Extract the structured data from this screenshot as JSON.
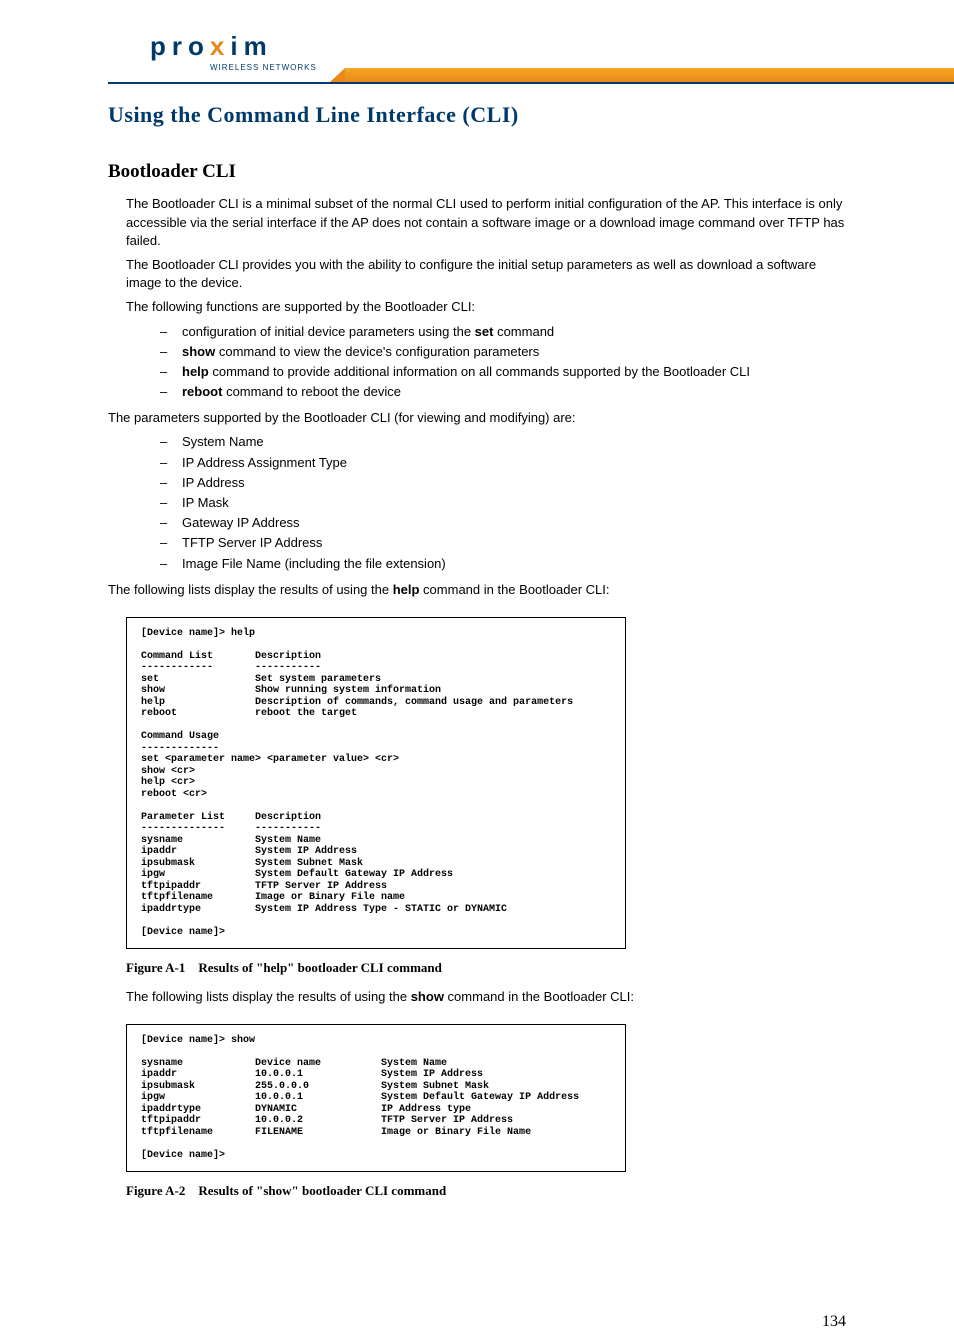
{
  "brand": {
    "name_part1": "pro",
    "name_x": "x",
    "name_part2": "im",
    "sub": "WIRELESS NETWORKS",
    "color_blue": "#003a6a",
    "color_orange": "#e88a1a"
  },
  "page_title": "Using the Command Line Interface (CLI)",
  "section_title": "Bootloader CLI",
  "intro_p1": "The Bootloader CLI is a minimal subset of the normal CLI used to perform initial configuration of the AP. This interface is only accessible via the serial interface if the AP does not contain a software image or a download image command over TFTP has failed.",
  "intro_p2": "The Bootloader CLI provides you with the ability to configure the initial setup parameters as well as download a software image to the device.",
  "intro_p3": "The following functions are supported by the Bootloader CLI:",
  "functions_list": [
    {
      "pre": "configuration of initial device parameters using the ",
      "bold": "set",
      "post": " command"
    },
    {
      "bold": "show",
      "post": " command to view the device's configuration parameters"
    },
    {
      "bold": "help",
      "post": " command to provide additional information on all commands supported by the Bootloader CLI"
    },
    {
      "bold": "reboot",
      "post": " command to reboot the device"
    }
  ],
  "params_intro": "The parameters supported by the Bootloader CLI (for viewing and modifying) are:",
  "params_list": [
    "System Name",
    "IP Address Assignment Type",
    "IP Address",
    "IP Mask",
    "Gateway IP Address",
    "TFTP Server IP Address",
    "Image File Name (including the file extension)"
  ],
  "help_intro_pre": "The following lists display the results of using the ",
  "help_intro_bold": "help",
  "help_intro_post": " command in the Bootloader CLI:",
  "terminal_help": "[Device name]> help\n\nCommand List       Description\n------------       -----------\nset                Set system parameters\nshow               Show running system information\nhelp               Description of commands, command usage and parameters\nreboot             reboot the target\n\nCommand Usage\n-------------\nset <parameter name> <parameter value> <cr>\nshow <cr>\nhelp <cr>\nreboot <cr>\n\nParameter List     Description\n--------------     -----------\nsysname            System Name\nipaddr             System IP Address\nipsubmask          System Subnet Mask\nipgw               System Default Gateway IP Address\ntftpipaddr         TFTP Server IP Address\ntftpfilename       Image or Binary File name\nipaddrtype         System IP Address Type - STATIC or DYNAMIC\n\n[Device name]>",
  "fig1_label": "Figure A-1",
  "fig1_caption": "Results of \"help\" bootloader CLI command",
  "show_intro_pre": "The following lists display the results of using the ",
  "show_intro_bold": "show",
  "show_intro_post": " command in the Bootloader CLI:",
  "terminal_show": "[Device name]> show\n\nsysname            Device name          System Name\nipaddr             10.0.0.1             System IP Address\nipsubmask          255.0.0.0            System Subnet Mask\nipgw               10.0.0.1             System Default Gateway IP Address\nipaddrtype         DYNAMIC              IP Address type\ntftpipaddr         10.0.0.2             TFTP Server IP Address\ntftpfilename       FILENAME             Image or Binary File Name\n\n[Device name]>",
  "fig2_label": "Figure A-2",
  "fig2_caption": "Results of \"show\" bootloader CLI command",
  "page_number": "134"
}
